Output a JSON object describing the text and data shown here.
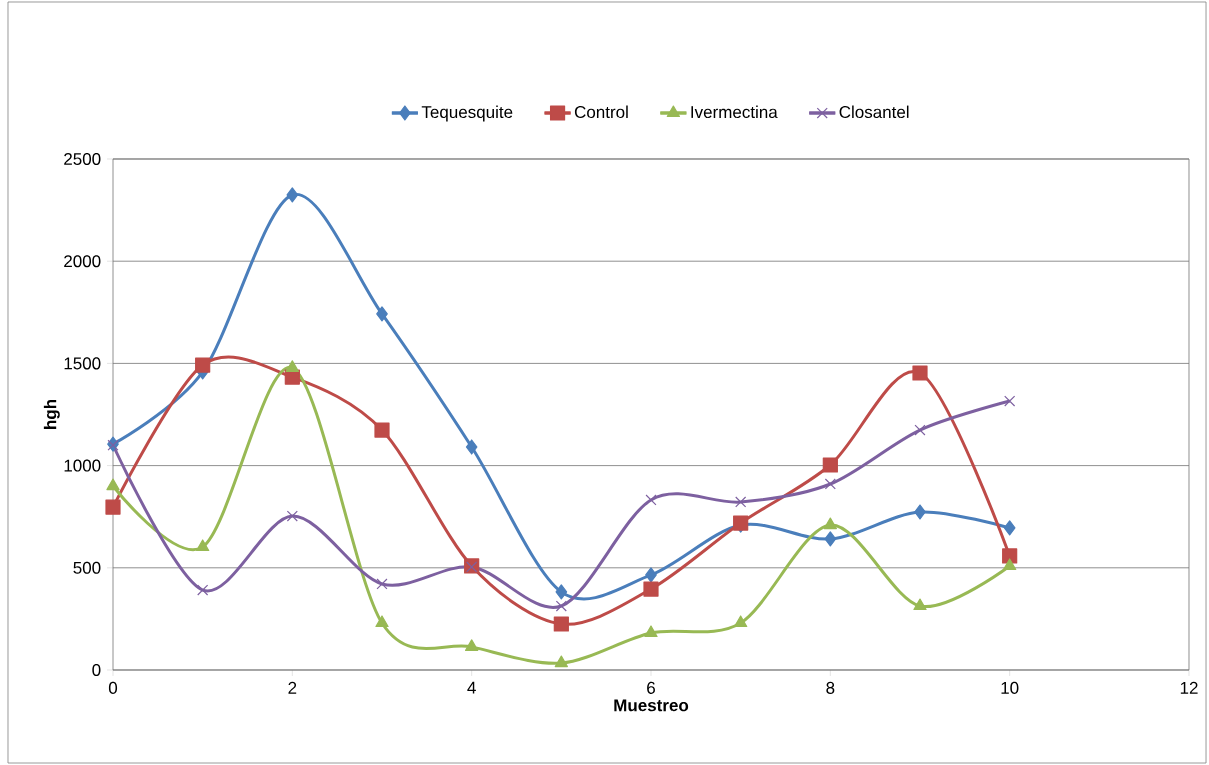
{
  "chart_data": {
    "type": "line",
    "xlabel": "Muestreo",
    "ylabel": "hgh",
    "x": [
      0,
      1,
      2,
      3,
      4,
      5,
      6,
      7,
      8,
      9,
      10
    ],
    "series": [
      {
        "name": "Tequesquite",
        "color": "#4a7ebb",
        "marker": "diamond",
        "values": [
          1105,
          1458,
          2324,
          1742,
          1091,
          382,
          465,
          709,
          641,
          773,
          695
        ]
      },
      {
        "name": "Control",
        "color": "#be4b48",
        "marker": "square",
        "values": [
          797,
          1492,
          1433,
          1174,
          509,
          225,
          396,
          719,
          1003,
          1453,
          558
        ]
      },
      {
        "name": "Ivermectina",
        "color": "#98b954",
        "marker": "triangle",
        "values": [
          900,
          602,
          1478,
          230,
          113,
          34,
          181,
          230,
          709,
          313,
          509
        ]
      },
      {
        "name": "Closantel",
        "color": "#7d60a0",
        "marker": "cross",
        "values": [
          1100,
          391,
          753,
          421,
          504,
          313,
          832,
          822,
          910,
          1174,
          1316
        ]
      }
    ],
    "xlim": [
      0,
      12
    ],
    "xticks": [
      0,
      2,
      4,
      6,
      8,
      10,
      12
    ],
    "ylim": [
      0,
      2500
    ],
    "yticks": [
      0,
      500,
      1000,
      1500,
      2000,
      2500
    ],
    "grid": "y",
    "legend": "top",
    "line_style": "solid"
  }
}
